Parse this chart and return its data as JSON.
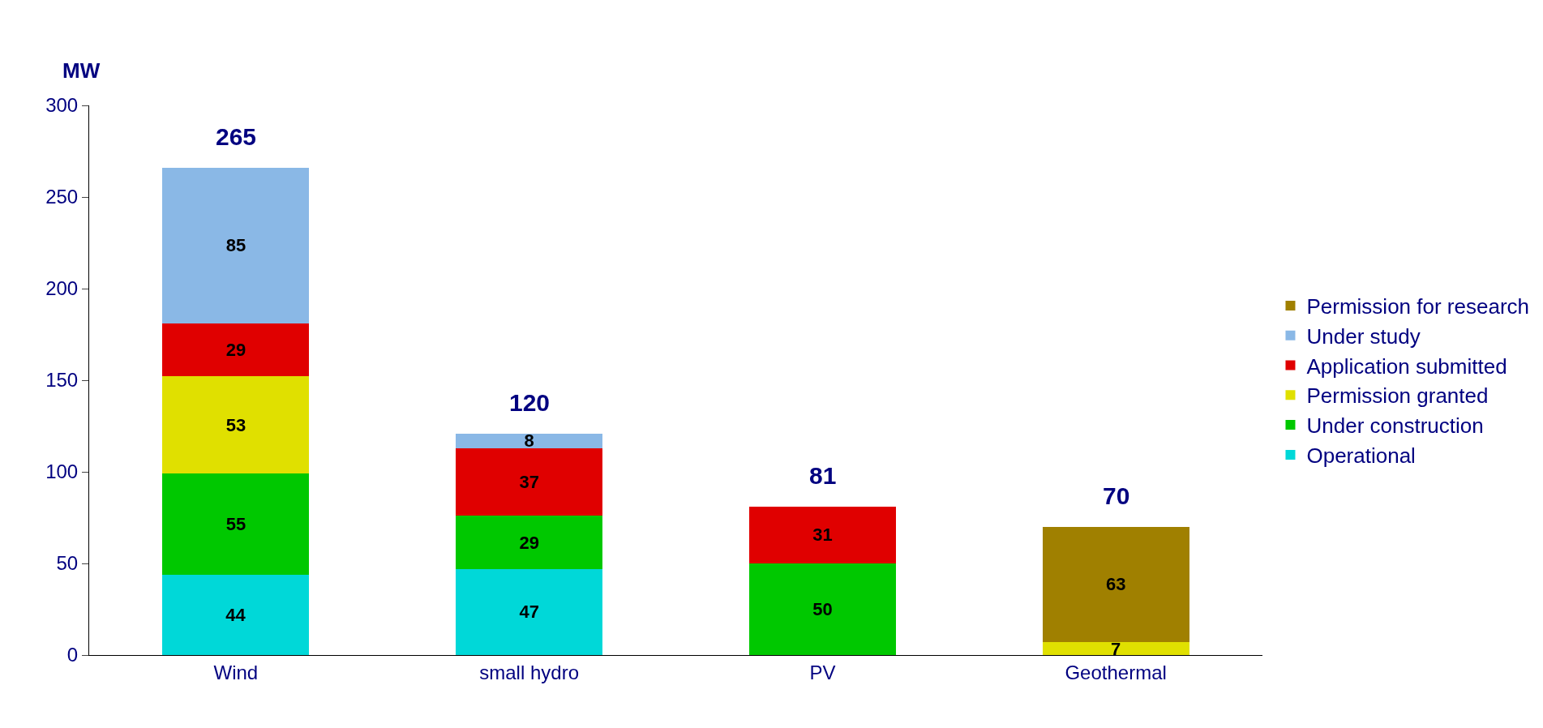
{
  "chart_data": {
    "type": "bar",
    "stacked": true,
    "ylabel": "MW",
    "categories": [
      "Wind",
      "small hydro",
      "PV",
      "Geothermal"
    ],
    "series": [
      {
        "name": "Operational",
        "color": "#00d8d8",
        "values": [
          44,
          47,
          null,
          null
        ]
      },
      {
        "name": "Under construction",
        "color": "#00c800",
        "values": [
          55,
          29,
          50,
          null
        ]
      },
      {
        "name": "Permission granted",
        "color": "#e0e000",
        "values": [
          53,
          null,
          null,
          7
        ]
      },
      {
        "name": "Application submitted",
        "color": "#e00000",
        "values": [
          29,
          37,
          31,
          null
        ]
      },
      {
        "name": "Under study",
        "color": "#8ab8e6",
        "values": [
          85,
          8,
          null,
          null
        ]
      },
      {
        "name": "Permission for research",
        "color": "#a08000",
        "values": [
          null,
          null,
          null,
          63
        ]
      }
    ],
    "totals": [
      "265",
      "120",
      "81",
      "70"
    ],
    "data_labels": true,
    "ylim": [
      0,
      300
    ],
    "yticks": [
      0,
      50,
      100,
      150,
      200,
      250,
      300
    ],
    "legend": "right"
  }
}
